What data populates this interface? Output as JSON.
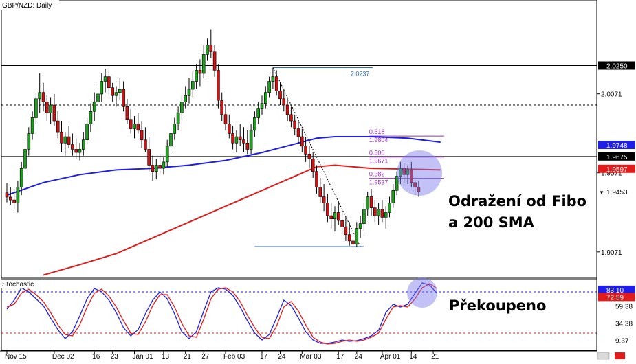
{
  "chart_data": {
    "type": "candlestick",
    "symbol_label": "GBP/NZD: Daily",
    "indicator_label": "Stochastic",
    "main_axis": {
      "min": 1.8905,
      "max": 2.0665,
      "labels": [
        {
          "value": 2.0071,
          "text": "2.0071"
        },
        {
          "value": 1.9571,
          "text": "1.9571"
        },
        {
          "value": 1.9071,
          "text": "1.9071"
        }
      ]
    },
    "price_tags": [
      {
        "value": 2.025,
        "text": "2.0250",
        "bg": "#000000",
        "fg": "#ffffff"
      },
      {
        "value": 1.9748,
        "text": "1.9748",
        "bg": "#1e1ee6",
        "fg": "#ffffff"
      },
      {
        "value": 1.9675,
        "text": "1.9675",
        "bg": "#000000",
        "fg": "#ffffff"
      },
      {
        "value": 1.9597,
        "text": "1.9597",
        "bg": "#e21b1b",
        "fg": "#ffffff"
      },
      {
        "value": 1.9453,
        "text": "1.9453",
        "bg": "#ffffff",
        "fg": "#000000",
        "marker": "▼"
      }
    ],
    "stoch_axis": {
      "labels": [
        {
          "value": 59.38,
          "text": "59.38"
        },
        {
          "value": 34.38,
          "text": "34.38"
        },
        {
          "value": 9.37,
          "text": "9.37"
        }
      ],
      "tags": [
        {
          "value": 83.1,
          "text": "83.10",
          "bg": "#1e1ee6",
          "fg": "#ffffff"
        },
        {
          "value": 72.59,
          "text": "72.59",
          "bg": "#e21b1b",
          "fg": "#ffffff"
        }
      ]
    },
    "x_labels": [
      {
        "i": 0,
        "text": "Nov 15"
      },
      {
        "i": 13,
        "text": "Dec 02"
      },
      {
        "i": 24,
        "text": "16"
      },
      {
        "i": 29,
        "text": "23"
      },
      {
        "i": 35,
        "text": "Jan 01"
      },
      {
        "i": 43,
        "text": "13"
      },
      {
        "i": 49,
        "text": "21"
      },
      {
        "i": 54,
        "text": "27"
      },
      {
        "i": 60,
        "text": "Feb 03"
      },
      {
        "i": 70,
        "text": "17"
      },
      {
        "i": 75,
        "text": "24"
      },
      {
        "i": 81,
        "text": "Mar 03"
      },
      {
        "i": 91,
        "text": "17"
      },
      {
        "i": 96,
        "text": "24"
      },
      {
        "i": 103,
        "text": "Apr 01"
      },
      {
        "i": 111,
        "text": "14"
      },
      {
        "i": 117,
        "text": "21"
      }
    ],
    "ohlc": [
      [
        1.9445,
        1.9505,
        1.9385,
        1.9418
      ],
      [
        1.9418,
        1.948,
        1.937,
        1.94
      ],
      [
        1.94,
        1.947,
        1.934,
        1.938
      ],
      [
        1.938,
        1.952,
        1.932,
        1.948
      ],
      [
        1.948,
        1.964,
        1.943,
        1.96
      ],
      [
        1.96,
        1.978,
        1.956,
        1.972
      ],
      [
        1.972,
        1.986,
        1.968,
        1.982
      ],
      [
        1.982,
        1.996,
        1.978,
        1.992
      ],
      [
        1.992,
        2.008,
        1.988,
        2.004
      ],
      [
        2.004,
        2.02,
        1.995,
        2.008
      ],
      [
        2.008,
        2.014,
        1.996,
        2.002
      ],
      [
        2.002,
        2.006,
        1.99,
        1.995
      ],
      [
        1.995,
        2.005,
        1.988,
        2.0
      ],
      [
        2.0,
        2.007,
        1.987,
        1.99
      ],
      [
        1.99,
        1.996,
        1.979,
        1.983
      ],
      [
        1.983,
        1.99,
        1.97,
        1.976
      ],
      [
        1.976,
        1.983,
        1.968,
        1.98
      ],
      [
        1.98,
        1.987,
        1.973,
        1.975
      ],
      [
        1.975,
        1.982,
        1.968,
        1.972
      ],
      [
        1.972,
        1.979,
        1.966,
        1.97
      ],
      [
        1.97,
        1.976,
        1.965,
        1.972
      ],
      [
        1.972,
        1.983,
        1.968,
        1.978
      ],
      [
        1.978,
        1.992,
        1.975,
        1.988
      ],
      [
        1.988,
        2.001,
        1.983,
        1.996
      ],
      [
        1.996,
        2.008,
        1.99,
        2.002
      ],
      [
        2.002,
        2.012,
        1.997,
        2.007
      ],
      [
        2.007,
        2.02,
        2.002,
        2.015
      ],
      [
        2.015,
        2.023,
        2.008,
        2.018
      ],
      [
        2.018,
        2.022,
        2.006,
        2.011
      ],
      [
        2.011,
        2.014,
        2.002,
        2.006
      ],
      [
        2.006,
        2.012,
        1.999,
        2.008
      ],
      [
        2.008,
        2.017,
        2.003,
        2.01
      ],
      [
        2.01,
        2.015,
        1.996,
        1.999
      ],
      [
        1.999,
        2.004,
        1.988,
        1.991
      ],
      [
        1.991,
        1.998,
        1.982,
        1.985
      ],
      [
        1.985,
        1.993,
        1.979,
        1.988
      ],
      [
        1.988,
        1.995,
        1.982,
        1.984
      ],
      [
        1.984,
        1.99,
        1.973,
        1.978
      ],
      [
        1.978,
        1.986,
        1.97,
        1.972
      ],
      [
        1.972,
        1.98,
        1.958,
        1.962
      ],
      [
        1.962,
        1.968,
        1.952,
        1.958
      ],
      [
        1.958,
        1.966,
        1.953,
        1.962
      ],
      [
        1.962,
        1.969,
        1.956,
        1.96
      ],
      [
        1.96,
        1.967,
        1.956,
        1.964
      ],
      [
        1.964,
        1.978,
        1.961,
        1.974
      ],
      [
        1.974,
        1.985,
        1.97,
        1.982
      ],
      [
        1.982,
        1.992,
        1.978,
        1.988
      ],
      [
        1.988,
        1.999,
        1.984,
        1.995
      ],
      [
        1.995,
        2.006,
        1.991,
        2.002
      ],
      [
        2.002,
        2.012,
        1.998,
        2.006
      ],
      [
        2.006,
        2.017,
        2.001,
        2.01
      ],
      [
        2.01,
        2.021,
        2.005,
        2.015
      ],
      [
        2.015,
        2.026,
        2.01,
        2.022
      ],
      [
        2.022,
        2.029,
        2.012,
        2.02
      ],
      [
        2.02,
        2.038,
        2.017,
        2.032
      ],
      [
        2.032,
        2.042,
        2.028,
        2.038
      ],
      [
        2.038,
        2.048,
        2.03,
        2.034
      ],
      [
        2.034,
        2.038,
        2.018,
        2.022
      ],
      [
        2.022,
        2.026,
        1.998,
        2.003
      ],
      [
        2.003,
        2.008,
        1.99,
        1.994
      ],
      [
        1.994,
        2.0,
        1.984,
        1.988
      ],
      [
        1.988,
        1.994,
        1.979,
        1.982
      ],
      [
        1.982,
        1.987,
        1.972,
        1.976
      ],
      [
        1.976,
        1.984,
        1.97,
        1.98
      ],
      [
        1.98,
        1.988,
        1.974,
        1.978
      ],
      [
        1.978,
        1.986,
        1.97,
        1.976
      ],
      [
        1.976,
        1.984,
        1.969,
        1.972
      ],
      [
        1.972,
        1.988,
        1.969,
        1.984
      ],
      [
        1.984,
        1.996,
        1.98,
        1.992
      ],
      [
        1.992,
        2.002,
        1.988,
        1.998
      ],
      [
        1.998,
        2.006,
        1.994,
        2.001
      ],
      [
        2.001,
        2.012,
        1.998,
        2.008
      ],
      [
        2.008,
        2.018,
        2.005,
        2.015
      ],
      [
        2.015,
        2.0237,
        2.01,
        2.018
      ],
      [
        2.018,
        2.022,
        2.006,
        2.009
      ],
      [
        2.009,
        2.014,
        2.0,
        2.004
      ],
      [
        2.004,
        2.01,
        1.996,
        2.0
      ],
      [
        2.0,
        2.004,
        1.99,
        1.994
      ],
      [
        1.994,
        1.999,
        1.986,
        1.99
      ],
      [
        1.99,
        1.994,
        1.981,
        1.985
      ],
      [
        1.985,
        1.99,
        1.976,
        1.98
      ],
      [
        1.98,
        1.985,
        1.97,
        1.974
      ],
      [
        1.974,
        1.98,
        1.964,
        1.969
      ],
      [
        1.969,
        1.974,
        1.96,
        1.966
      ],
      [
        1.966,
        1.97,
        1.954,
        1.958
      ],
      [
        1.958,
        1.962,
        1.944,
        1.948
      ],
      [
        1.948,
        1.954,
        1.938,
        1.942
      ],
      [
        1.942,
        1.95,
        1.933,
        1.938
      ],
      [
        1.938,
        1.944,
        1.926,
        1.93
      ],
      [
        1.93,
        1.938,
        1.922,
        1.928
      ],
      [
        1.928,
        1.936,
        1.92,
        1.932
      ],
      [
        1.932,
        1.939,
        1.924,
        1.927
      ],
      [
        1.927,
        1.934,
        1.918,
        1.923
      ],
      [
        1.923,
        1.93,
        1.914,
        1.918
      ],
      [
        1.918,
        1.926,
        1.911,
        1.914
      ],
      [
        1.914,
        1.922,
        1.909,
        1.912
      ],
      [
        1.912,
        1.926,
        1.91,
        1.922
      ],
      [
        1.922,
        1.93,
        1.916,
        1.925
      ],
      [
        1.925,
        1.938,
        1.92,
        1.934
      ],
      [
        1.934,
        1.945,
        1.93,
        1.942
      ],
      [
        1.942,
        1.947,
        1.93,
        1.935
      ],
      [
        1.935,
        1.94,
        1.926,
        1.93
      ],
      [
        1.93,
        1.938,
        1.924,
        1.934
      ],
      [
        1.934,
        1.94,
        1.926,
        1.929
      ],
      [
        1.929,
        1.936,
        1.922,
        1.932
      ],
      [
        1.932,
        1.942,
        1.929,
        1.938
      ],
      [
        1.938,
        1.95,
        1.935,
        1.946
      ],
      [
        1.946,
        1.958,
        1.943,
        1.955
      ],
      [
        1.955,
        1.964,
        1.95,
        1.96
      ],
      [
        1.96,
        1.963,
        1.951,
        1.956
      ],
      [
        1.956,
        1.962,
        1.95,
        1.959
      ],
      [
        1.959,
        1.964,
        1.948,
        1.951
      ],
      [
        1.951,
        1.955,
        1.943,
        1.948
      ],
      [
        1.948,
        1.952,
        1.942,
        1.945
      ]
    ],
    "sma_blue": [
      [
        0,
        1.943
      ],
      [
        10,
        1.951
      ],
      [
        20,
        1.956
      ],
      [
        30,
        1.959
      ],
      [
        40,
        1.96
      ],
      [
        50,
        1.962
      ],
      [
        60,
        1.965
      ],
      [
        70,
        1.97
      ],
      [
        80,
        1.976
      ],
      [
        85,
        1.979
      ],
      [
        90,
        1.98
      ],
      [
        100,
        1.98
      ],
      [
        110,
        1.979
      ],
      [
        119,
        1.9765
      ]
    ],
    "sma_red": [
      [
        10,
        1.8925
      ],
      [
        20,
        1.899
      ],
      [
        30,
        1.906
      ],
      [
        40,
        1.916
      ],
      [
        50,
        1.926
      ],
      [
        60,
        1.936
      ],
      [
        70,
        1.946
      ],
      [
        80,
        1.956
      ],
      [
        85,
        1.961
      ],
      [
        90,
        1.962
      ],
      [
        100,
        1.96
      ],
      [
        110,
        1.9595
      ],
      [
        119,
        1.959
      ]
    ],
    "h_lines": [
      {
        "value": 2.025,
        "style": "solid"
      },
      {
        "value": 2.0,
        "style": "dashed"
      },
      {
        "value": 1.9675,
        "style": "solid"
      }
    ],
    "fibo": {
      "from_i": 73,
      "to_i": 97,
      "high": 2.0237,
      "low": 1.9105,
      "end_i": 120,
      "levels": [
        {
          "ratio_text": "0.618",
          "price_text": "1.9804",
          "value": 1.9804,
          "color": "#9b2fc7"
        },
        {
          "ratio_text": "0.500",
          "price_text": "1.9671",
          "value": 1.9671,
          "color": "#9b2fc7"
        },
        {
          "ratio_text": "0.382",
          "price_text": "1.9537",
          "value": 1.9537,
          "color": "#9b2fc7"
        }
      ],
      "top_text": "2.0237"
    },
    "stoch": {
      "k": [
        [
          0,
          55
        ],
        [
          2,
          68
        ],
        [
          4,
          86
        ],
        [
          6,
          80
        ],
        [
          8,
          70
        ],
        [
          10,
          60
        ],
        [
          12,
          42
        ],
        [
          14,
          25
        ],
        [
          16,
          12
        ],
        [
          18,
          22
        ],
        [
          20,
          45
        ],
        [
          22,
          70
        ],
        [
          24,
          85
        ],
        [
          26,
          80
        ],
        [
          28,
          68
        ],
        [
          30,
          50
        ],
        [
          32,
          28
        ],
        [
          34,
          16
        ],
        [
          36,
          25
        ],
        [
          38,
          48
        ],
        [
          40,
          68
        ],
        [
          42,
          80
        ],
        [
          44,
          70
        ],
        [
          46,
          48
        ],
        [
          48,
          22
        ],
        [
          50,
          12
        ],
        [
          52,
          22
        ],
        [
          54,
          52
        ],
        [
          56,
          80
        ],
        [
          58,
          86
        ],
        [
          60,
          84
        ],
        [
          62,
          75
        ],
        [
          64,
          58
        ],
        [
          66,
          38
        ],
        [
          68,
          20
        ],
        [
          70,
          10
        ],
        [
          72,
          18
        ],
        [
          74,
          42
        ],
        [
          76,
          68
        ],
        [
          78,
          60
        ],
        [
          80,
          42
        ],
        [
          82,
          22
        ],
        [
          84,
          10
        ],
        [
          86,
          5
        ],
        [
          88,
          5
        ],
        [
          90,
          7
        ],
        [
          92,
          10
        ],
        [
          94,
          8
        ],
        [
          96,
          9
        ],
        [
          98,
          12
        ],
        [
          100,
          16
        ],
        [
          102,
          24
        ],
        [
          104,
          50
        ],
        [
          106,
          62
        ],
        [
          108,
          58
        ],
        [
          110,
          62
        ],
        [
          112,
          78
        ],
        [
          114,
          93
        ],
        [
          116,
          90
        ],
        [
          118,
          78
        ]
      ],
      "d": [
        [
          0,
          58
        ],
        [
          2,
          62
        ],
        [
          4,
          78
        ],
        [
          6,
          84
        ],
        [
          8,
          76
        ],
        [
          10,
          66
        ],
        [
          12,
          50
        ],
        [
          14,
          32
        ],
        [
          16,
          18
        ],
        [
          18,
          16
        ],
        [
          20,
          32
        ],
        [
          22,
          58
        ],
        [
          24,
          78
        ],
        [
          26,
          84
        ],
        [
          28,
          74
        ],
        [
          30,
          58
        ],
        [
          32,
          38
        ],
        [
          34,
          20
        ],
        [
          36,
          18
        ],
        [
          38,
          36
        ],
        [
          40,
          60
        ],
        [
          42,
          76
        ],
        [
          44,
          76
        ],
        [
          46,
          58
        ],
        [
          48,
          34
        ],
        [
          50,
          16
        ],
        [
          52,
          14
        ],
        [
          54,
          40
        ],
        [
          56,
          70
        ],
        [
          58,
          84
        ],
        [
          60,
          86
        ],
        [
          62,
          80
        ],
        [
          64,
          66
        ],
        [
          66,
          46
        ],
        [
          68,
          28
        ],
        [
          70,
          14
        ],
        [
          72,
          12
        ],
        [
          74,
          30
        ],
        [
          76,
          58
        ],
        [
          78,
          66
        ],
        [
          80,
          52
        ],
        [
          82,
          32
        ],
        [
          84,
          14
        ],
        [
          86,
          7
        ],
        [
          88,
          4
        ],
        [
          90,
          5
        ],
        [
          92,
          8
        ],
        [
          94,
          10
        ],
        [
          96,
          8
        ],
        [
          98,
          10
        ],
        [
          100,
          14
        ],
        [
          102,
          20
        ],
        [
          104,
          40
        ],
        [
          106,
          58
        ],
        [
          108,
          60
        ],
        [
          110,
          58
        ],
        [
          112,
          70
        ],
        [
          114,
          86
        ],
        [
          116,
          92
        ],
        [
          118,
          85
        ]
      ],
      "overbought": 80,
      "oversold": 20
    },
    "annotations": [
      {
        "lines": [
          "Odražení od Fibo",
          "a 200 SMA"
        ]
      },
      {
        "lines": [
          "Překoupeno"
        ]
      }
    ]
  }
}
